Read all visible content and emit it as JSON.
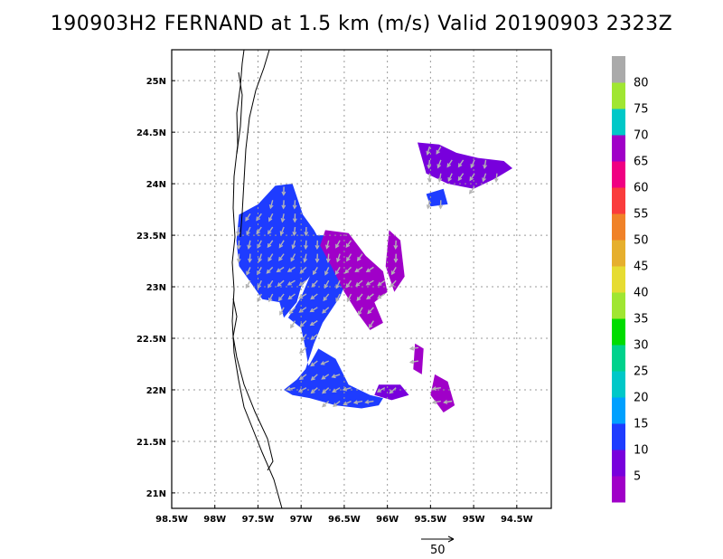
{
  "title": "190903H2 FERNAND at 1.5 km (m/s) Valid 20190903 2323Z",
  "reference_vector": {
    "label": "50"
  },
  "colors": {
    "frame": "#000000",
    "grid": "#9a9a9a",
    "coastline": "#000000",
    "arrow": "#b4b4b4"
  },
  "chart_data": {
    "type": "heatmap",
    "title": "190903H2 FERNAND at 1.5 km (m/s) Valid 20190903 2323Z",
    "xlabel": "",
    "ylabel": "",
    "xlim": [
      -98.5,
      -94.1
    ],
    "ylim": [
      20.85,
      25.3
    ],
    "grid": true,
    "x_ticks": [
      -98.5,
      -98,
      -97.5,
      -97,
      -96.5,
      -96,
      -95.5,
      -95,
      -94.5
    ],
    "x_tick_labels": [
      "98.5W",
      "98W",
      "97.5W",
      "97W",
      "96.5W",
      "96W",
      "95.5W",
      "95W",
      "94.5W"
    ],
    "y_ticks": [
      21,
      21.5,
      22,
      22.5,
      23,
      23.5,
      24,
      24.5,
      25
    ],
    "y_tick_labels": [
      "21N",
      "21.5N",
      "22N",
      "22.5N",
      "23N",
      "23.5N",
      "24N",
      "24.5N",
      "25N"
    ],
    "colorbar": {
      "labels": [
        "5",
        "10",
        "15",
        "20",
        "25",
        "30",
        "35",
        "40",
        "45",
        "50",
        "55",
        "60",
        "65",
        "70",
        "75",
        "80"
      ],
      "colors": [
        "#a000c8",
        "#7800dc",
        "#1e3cff",
        "#00a0ff",
        "#00c8c8",
        "#00d28c",
        "#00dc00",
        "#a0e632",
        "#e6dc32",
        "#e6af2d",
        "#f08228",
        "#fa3c3c",
        "#f00082",
        "#a000c8",
        "#00c8c8",
        "#a0e632",
        "#aaaaaa"
      ]
    },
    "wind_regions": [
      {
        "name": "western-main",
        "speed_class": 15,
        "polygon": [
          [
            -97.72,
            23.7
          ],
          [
            -97.5,
            23.8
          ],
          [
            -97.3,
            23.98
          ],
          [
            -97.1,
            24.0
          ],
          [
            -96.98,
            23.7
          ],
          [
            -96.85,
            23.55
          ],
          [
            -96.72,
            23.35
          ],
          [
            -96.85,
            23.15
          ],
          [
            -97.0,
            23.0
          ],
          [
            -97.05,
            22.85
          ],
          [
            -97.2,
            22.7
          ],
          [
            -97.25,
            22.85
          ],
          [
            -97.45,
            22.88
          ],
          [
            -97.55,
            23.0
          ],
          [
            -97.72,
            23.2
          ],
          [
            -97.75,
            23.45
          ]
        ]
      },
      {
        "name": "central-band",
        "speed_class": 15,
        "polygon": [
          [
            -96.95,
            23.5
          ],
          [
            -96.6,
            23.5
          ],
          [
            -96.4,
            23.2
          ],
          [
            -96.55,
            22.9
          ],
          [
            -96.75,
            22.65
          ],
          [
            -96.85,
            22.45
          ],
          [
            -96.95,
            22.2
          ],
          [
            -97.05,
            22.0
          ],
          [
            -96.9,
            22.15
          ],
          [
            -96.95,
            22.4
          ],
          [
            -97.0,
            22.6
          ],
          [
            -97.15,
            22.7
          ],
          [
            -97.0,
            22.9
          ],
          [
            -96.9,
            23.1
          ]
        ]
      },
      {
        "name": "southern-arm",
        "speed_class": 15,
        "polygon": [
          [
            -97.2,
            22.0
          ],
          [
            -97.05,
            22.1
          ],
          [
            -96.9,
            22.25
          ],
          [
            -96.8,
            22.4
          ],
          [
            -96.6,
            22.3
          ],
          [
            -96.45,
            22.05
          ],
          [
            -96.2,
            21.95
          ],
          [
            -96.05,
            21.92
          ],
          [
            -96.1,
            21.85
          ],
          [
            -96.3,
            21.82
          ],
          [
            -96.6,
            21.85
          ],
          [
            -96.9,
            21.92
          ],
          [
            -97.1,
            21.95
          ]
        ]
      },
      {
        "name": "purple-core",
        "speed_class": 5,
        "polygon": [
          [
            -96.72,
            23.55
          ],
          [
            -96.45,
            23.52
          ],
          [
            -96.25,
            23.3
          ],
          [
            -96.05,
            23.15
          ],
          [
            -96.0,
            22.95
          ],
          [
            -96.15,
            22.85
          ],
          [
            -96.05,
            22.65
          ],
          [
            -96.2,
            22.58
          ],
          [
            -96.35,
            22.75
          ],
          [
            -96.5,
            22.95
          ],
          [
            -96.65,
            23.2
          ],
          [
            -96.78,
            23.4
          ]
        ]
      },
      {
        "name": "ne-cluster",
        "speed_class": 10,
        "polygon": [
          [
            -95.65,
            24.4
          ],
          [
            -95.4,
            24.38
          ],
          [
            -95.2,
            24.3
          ],
          [
            -94.95,
            24.25
          ],
          [
            -94.65,
            24.22
          ],
          [
            -94.55,
            24.15
          ],
          [
            -94.75,
            24.05
          ],
          [
            -95.0,
            23.95
          ],
          [
            -95.3,
            24.0
          ],
          [
            -95.55,
            24.1
          ]
        ]
      },
      {
        "name": "east-purple",
        "speed_class": 5,
        "polygon": [
          [
            -95.98,
            23.55
          ],
          [
            -95.85,
            23.45
          ],
          [
            -95.8,
            23.1
          ],
          [
            -95.92,
            22.95
          ],
          [
            -96.02,
            23.2
          ]
        ]
      },
      {
        "name": "se-purple",
        "speed_class": 5,
        "polygon": [
          [
            -95.45,
            22.15
          ],
          [
            -95.3,
            22.08
          ],
          [
            -95.22,
            21.85
          ],
          [
            -95.35,
            21.78
          ],
          [
            -95.5,
            21.95
          ]
        ]
      },
      {
        "name": "small-purple",
        "speed_class": 5,
        "polygon": [
          [
            -95.68,
            22.45
          ],
          [
            -95.58,
            22.4
          ],
          [
            -95.6,
            22.15
          ],
          [
            -95.7,
            22.2
          ]
        ]
      },
      {
        "name": "se-blue-blob",
        "speed_class": 10,
        "polygon": [
          [
            -96.1,
            22.05
          ],
          [
            -95.85,
            22.05
          ],
          [
            -95.75,
            21.95
          ],
          [
            -95.95,
            21.9
          ],
          [
            -96.15,
            21.95
          ]
        ]
      },
      {
        "name": "ne-patch",
        "speed_class": 15,
        "polygon": [
          [
            -95.55,
            23.9
          ],
          [
            -95.35,
            23.95
          ],
          [
            -95.3,
            23.8
          ],
          [
            -95.5,
            23.78
          ]
        ]
      }
    ]
  }
}
